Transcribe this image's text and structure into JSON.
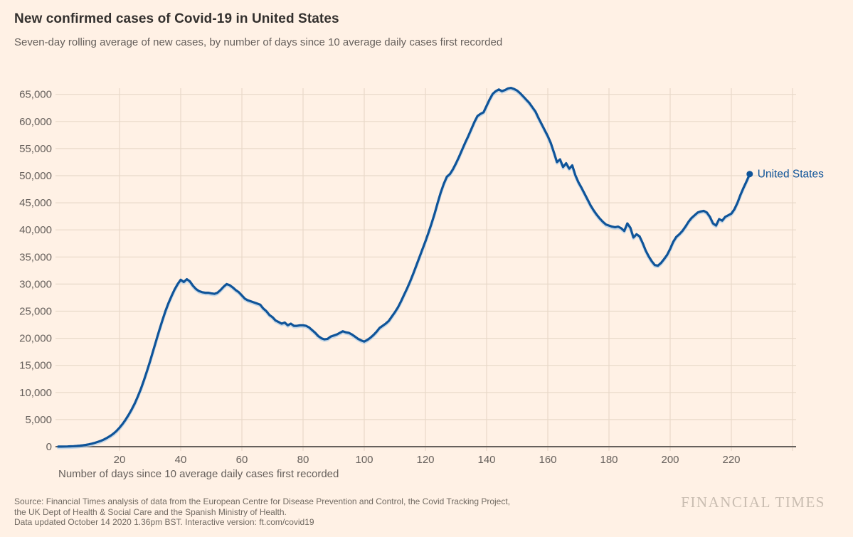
{
  "header": {
    "title": "New confirmed cases of Covid-19 in United States",
    "subtitle": "Seven-day rolling average of new cases, by number of days since 10 average daily cases first recorded"
  },
  "chart_data": {
    "type": "line",
    "title": "New confirmed cases of Covid-19 in United States",
    "xlabel": "Number of days since 10 average daily cases first recorded",
    "ylabel": "",
    "xlim": [
      0,
      242
    ],
    "ylim": [
      0,
      66500
    ],
    "grid": true,
    "legend_position": "end-of-line-label",
    "x_ticks": [
      20,
      40,
      60,
      80,
      100,
      120,
      140,
      160,
      180,
      200,
      220
    ],
    "x_tick_labels": [
      "20",
      "40",
      "60",
      "80",
      "100",
      "120",
      "140",
      "160",
      "180",
      "200",
      "220"
    ],
    "x_gridlines": [
      20,
      40,
      60,
      80,
      100,
      120,
      140,
      160,
      180,
      200,
      220,
      240
    ],
    "y_ticks": [
      0,
      5000,
      10000,
      15000,
      20000,
      25000,
      30000,
      35000,
      40000,
      45000,
      50000,
      55000,
      60000,
      65000
    ],
    "y_tick_labels": [
      "0",
      "5,000",
      "10,000",
      "15,000",
      "20,000",
      "25,000",
      "30,000",
      "35,000",
      "40,000",
      "45,000",
      "50,000",
      "55,000",
      "60,000",
      "65,000"
    ],
    "series": [
      {
        "name": "United States",
        "color": "#0F5499",
        "x_days_start": 0,
        "x_days_step": 1,
        "values": [
          10,
          15,
          25,
          40,
          60,
          90,
          130,
          180,
          250,
          330,
          430,
          560,
          720,
          900,
          1100,
          1350,
          1650,
          2000,
          2400,
          2900,
          3500,
          4200,
          5000,
          5900,
          6900,
          8000,
          9300,
          10700,
          12300,
          14000,
          15800,
          17700,
          19600,
          21500,
          23300,
          25000,
          26500,
          27800,
          29000,
          30000,
          30800,
          30400,
          30900,
          30500,
          29700,
          29100,
          28700,
          28500,
          28400,
          28400,
          28300,
          28200,
          28400,
          28900,
          29500,
          30000,
          29800,
          29400,
          28900,
          28500,
          27900,
          27300,
          27000,
          26800,
          26600,
          26400,
          26200,
          25500,
          25000,
          24300,
          23900,
          23300,
          23000,
          22700,
          22900,
          22400,
          22700,
          22300,
          22300,
          22400,
          22400,
          22300,
          22000,
          21500,
          21000,
          20400,
          20000,
          19800,
          19900,
          20300,
          20500,
          20700,
          21000,
          21300,
          21100,
          21000,
          20700,
          20300,
          19900,
          19600,
          19400,
          19700,
          20100,
          20600,
          21200,
          21900,
          22300,
          22700,
          23200,
          24000,
          24800,
          25700,
          26800,
          28000,
          29200,
          30500,
          31900,
          33400,
          34900,
          36400,
          37900,
          39500,
          41200,
          43000,
          45000,
          46900,
          48500,
          49800,
          50300,
          51200,
          52300,
          53500,
          54800,
          56100,
          57300,
          58600,
          59900,
          61000,
          61400,
          61700,
          62900,
          64100,
          65100,
          65600,
          65900,
          65600,
          65800,
          66100,
          66200,
          66000,
          65700,
          65200,
          64600,
          64000,
          63400,
          62600,
          61800,
          60600,
          59500,
          58400,
          57300,
          56000,
          54300,
          52500,
          53000,
          51600,
          52300,
          51300,
          51900,
          50100,
          48800,
          47800,
          46700,
          45600,
          44500,
          43600,
          42800,
          42100,
          41500,
          41000,
          40800,
          40600,
          40500,
          40600,
          40300,
          39800,
          41200,
          40400,
          38600,
          39200,
          38800,
          37600,
          36200,
          35100,
          34200,
          33500,
          33400,
          33900,
          34600,
          35400,
          36500,
          37800,
          38700,
          39200,
          39800,
          40600,
          41500,
          42200,
          42700,
          43200,
          43400,
          43500,
          43200,
          42400,
          41200,
          40800,
          42000,
          41700,
          42400,
          42700,
          43000,
          43800,
          45000,
          46500,
          47800,
          49000,
          50300
        ]
      }
    ]
  },
  "footer": {
    "lines": [
      "Source: Financial Times analysis of data from the European Centre for Disease Prevention and Control, the Covid Tracking Project,",
      "the UK Dept of Health & Social Care and the Spanish Ministry of Health.",
      "Data updated October 14 2020 1.36pm BST. Interactive version: ft.com/covid19"
    ],
    "watermark": "FINANCIAL TIMES"
  },
  "colors": {
    "background": "#FFF1E5",
    "line": "#0F5499",
    "line_halo": "#A7C9E6",
    "grid": "#E8D9C9",
    "axis_line": "#66605C",
    "axis_text": "#66605C",
    "title_text": "#33302E",
    "subtitle_text": "#66605C",
    "footer_text": "#716A62",
    "watermark_text": "#C9BDB1"
  }
}
